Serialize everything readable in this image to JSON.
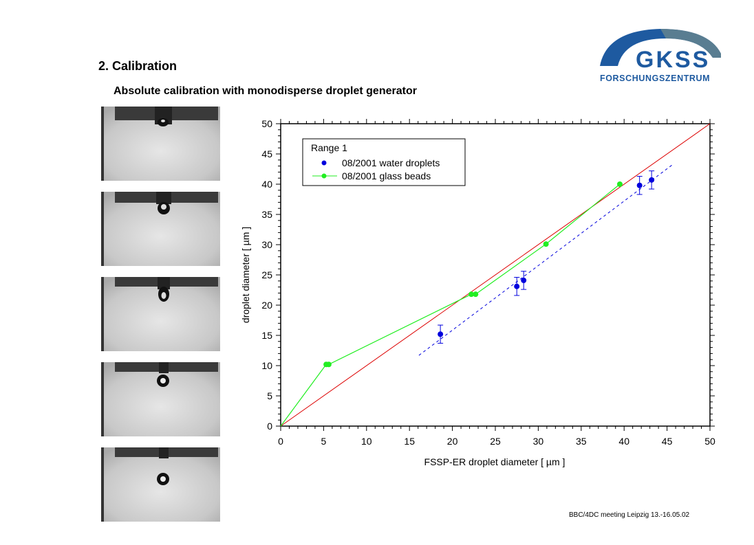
{
  "slide": {
    "title": "2. Calibration",
    "subtitle": "Absolute calibration with monodisperse droplet generator",
    "footer": "BBC/4DC meeting Leipzig 13.-16.05.02"
  },
  "logo": {
    "name": "GKSS",
    "tagline": "FORSCHUNGSZENTRUM",
    "color": "#1e5aa0"
  },
  "photos": [
    {
      "name": "droplet-photo",
      "stage": "forming"
    },
    {
      "name": "droplet-photo",
      "stage": "detaching"
    },
    {
      "name": "droplet-photo",
      "stage": "detached"
    },
    {
      "name": "droplet-photo",
      "stage": "falling"
    },
    {
      "name": "droplet-photo",
      "stage": "falling"
    }
  ],
  "chart_data": {
    "type": "scatter",
    "xlabel": "FSSP-ER droplet diameter [ µm ]",
    "ylabel": "droplet diameter [ µm ]",
    "xlim": [
      0,
      50
    ],
    "ylim": [
      0,
      50
    ],
    "xticks": [
      0,
      5,
      10,
      15,
      20,
      25,
      30,
      35,
      40,
      45,
      50
    ],
    "yticks": [
      0,
      5,
      10,
      15,
      20,
      25,
      30,
      35,
      40,
      45,
      50
    ],
    "grid": false,
    "legend_title": "Range 1",
    "legend_position": "top-left",
    "series": [
      {
        "name": "08/2001 water droplets",
        "color": "#0000dd",
        "style": "markers-with-errorbars",
        "points": [
          {
            "x": 18.6,
            "y": 15.2,
            "err": 1.5
          },
          {
            "x": 27.5,
            "y": 23.1,
            "err": 1.5
          },
          {
            "x": 28.3,
            "y": 24.1,
            "err": 1.5
          },
          {
            "x": 41.8,
            "y": 39.8,
            "err": 1.5
          },
          {
            "x": 43.2,
            "y": 40.7,
            "err": 1.5
          }
        ]
      },
      {
        "name": "08/2001 glass beads",
        "color": "#22ee22",
        "style": "line-markers",
        "points": [
          {
            "x": 0,
            "y": 0
          },
          {
            "x": 5.3,
            "y": 10.2
          },
          {
            "x": 5.6,
            "y": 10.2
          },
          {
            "x": 22.2,
            "y": 21.8
          },
          {
            "x": 22.7,
            "y": 21.8
          },
          {
            "x": 30.9,
            "y": 30.1
          },
          {
            "x": 39.5,
            "y": 40.0
          }
        ]
      }
    ],
    "reference_lines": [
      {
        "type": "one-to-one",
        "color": "#dd0000",
        "x": [
          0,
          50
        ],
        "y": [
          0,
          50
        ]
      },
      {
        "type": "linear-fit",
        "color": "#0000dd",
        "dashed": true,
        "x": [
          16.1,
          45.8
        ],
        "y": [
          11.7,
          43.4
        ]
      }
    ]
  }
}
